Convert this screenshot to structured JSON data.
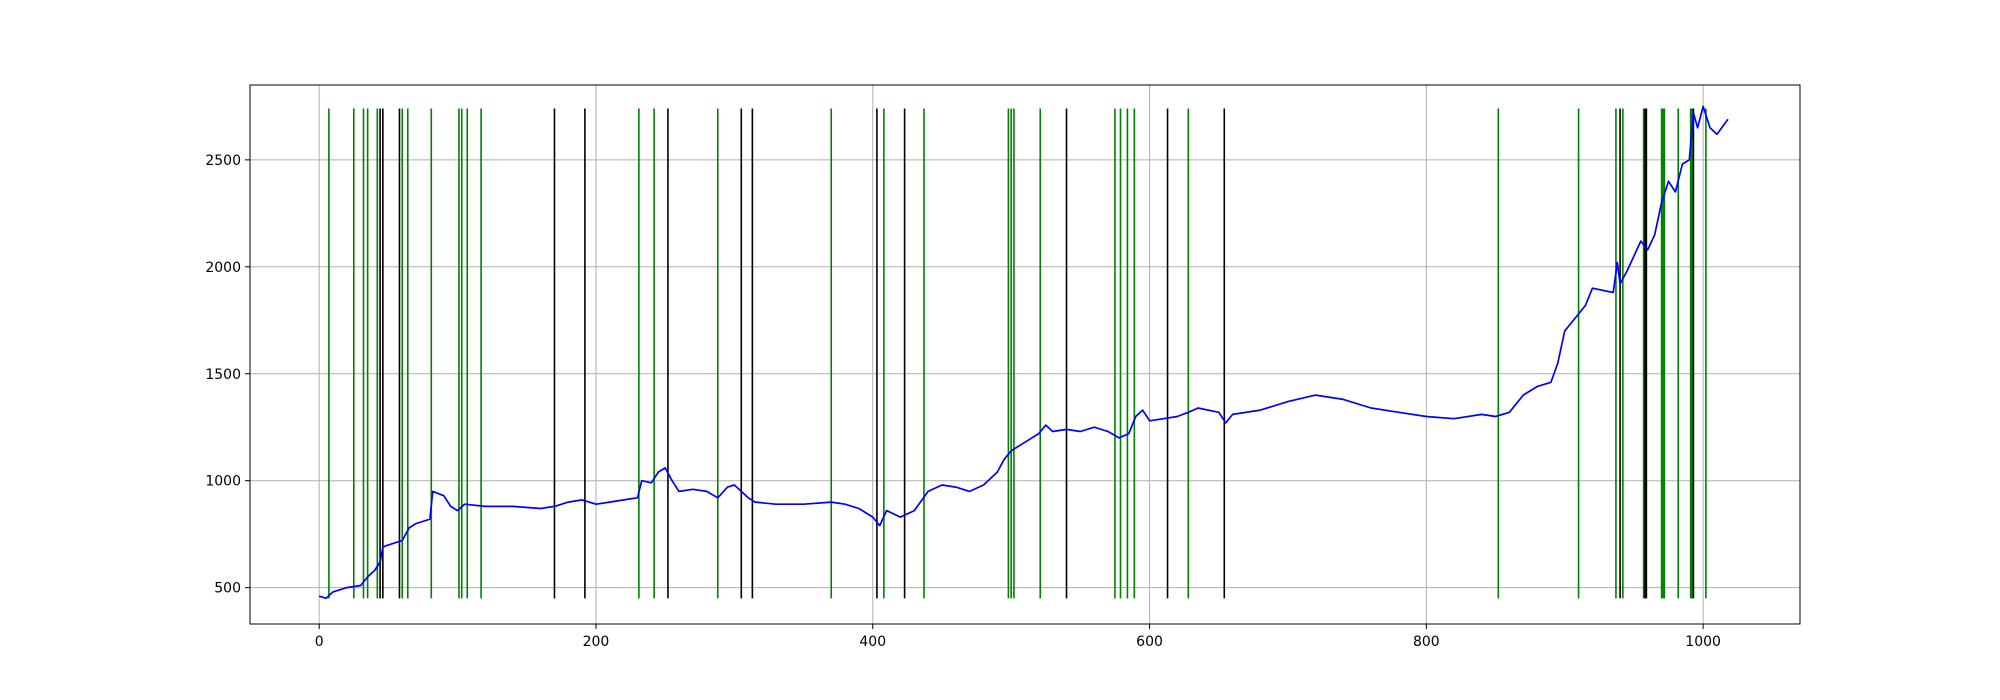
{
  "chart_data": {
    "type": "line",
    "title": "",
    "xlabel": "",
    "ylabel": "",
    "xlim": [
      -50,
      1070
    ],
    "ylim": [
      330,
      2850
    ],
    "grid": true,
    "legend": "none",
    "xticks": [
      0,
      200,
      400,
      600,
      800,
      1000
    ],
    "yticks": [
      500,
      1000,
      1500,
      2000,
      2500
    ],
    "xtick_labels": [
      "0",
      "200",
      "400",
      "600",
      "800",
      "1000"
    ],
    "ytick_labels": [
      "500",
      "1000",
      "1500",
      "2000",
      "2500"
    ],
    "series": [
      {
        "color": "#0000ff",
        "x": [
          0,
          5,
          10,
          20,
          30,
          35,
          40,
          44,
          46,
          50,
          60,
          65,
          70,
          80,
          82,
          90,
          95,
          100,
          105,
          120,
          140,
          160,
          170,
          180,
          190,
          200,
          210,
          220,
          230,
          233,
          240,
          245,
          250,
          255,
          260,
          270,
          280,
          288,
          295,
          300,
          310,
          315,
          330,
          350,
          370,
          380,
          390,
          400,
          405,
          410,
          420,
          430,
          440,
          450,
          460,
          470,
          480,
          490,
          495,
          500,
          510,
          520,
          525,
          530,
          540,
          550,
          560,
          570,
          578,
          585,
          590,
          595,
          600,
          610,
          620,
          628,
          635,
          650,
          655,
          660,
          680,
          700,
          720,
          740,
          760,
          780,
          800,
          820,
          840,
          850,
          860,
          870,
          880,
          890,
          895,
          900,
          910,
          915,
          920,
          935,
          938,
          940,
          945,
          950,
          955,
          960,
          965,
          970,
          975,
          980,
          985,
          990,
          993,
          996,
          1000,
          1005,
          1010,
          1018
        ],
        "y": [
          460,
          450,
          480,
          500,
          510,
          550,
          580,
          620,
          690,
          700,
          720,
          780,
          800,
          820,
          950,
          930,
          880,
          860,
          890,
          880,
          880,
          870,
          880,
          900,
          910,
          890,
          900,
          910,
          920,
          1000,
          990,
          1040,
          1060,
          1000,
          950,
          960,
          950,
          920,
          970,
          980,
          920,
          900,
          890,
          890,
          900,
          890,
          870,
          830,
          790,
          860,
          830,
          860,
          950,
          980,
          970,
          950,
          980,
          1040,
          1100,
          1140,
          1180,
          1220,
          1260,
          1230,
          1240,
          1230,
          1250,
          1230,
          1200,
          1220,
          1300,
          1330,
          1280,
          1290,
          1300,
          1320,
          1340,
          1320,
          1270,
          1310,
          1330,
          1370,
          1400,
          1380,
          1340,
          1320,
          1300,
          1290,
          1310,
          1300,
          1320,
          1400,
          1440,
          1460,
          1550,
          1700,
          1780,
          1820,
          1900,
          1880,
          2020,
          1920,
          1980,
          2050,
          2120,
          2080,
          2150,
          2300,
          2400,
          2350,
          2480,
          2500,
          2720,
          2650,
          2750,
          2650,
          2620,
          2690
        ]
      }
    ],
    "vlines_green": {
      "color": "#008000",
      "ymin": 450,
      "ymax": 2740,
      "x": [
        7,
        25,
        32,
        35,
        42,
        60,
        64,
        81,
        101,
        103,
        107,
        117,
        231,
        242,
        288,
        370,
        408,
        437,
        498,
        500,
        502,
        521,
        575,
        579,
        584,
        589,
        628,
        852,
        910,
        937,
        942,
        957,
        970,
        971,
        972,
        982,
        991,
        992,
        1002
      ]
    },
    "vlines_black": {
      "color": "#000000",
      "ymin": 450,
      "ymax": 2740,
      "x": [
        44,
        46,
        58,
        170,
        192,
        252,
        305,
        313,
        403,
        423,
        540,
        613,
        654,
        940,
        958,
        959,
        993
      ]
    }
  }
}
